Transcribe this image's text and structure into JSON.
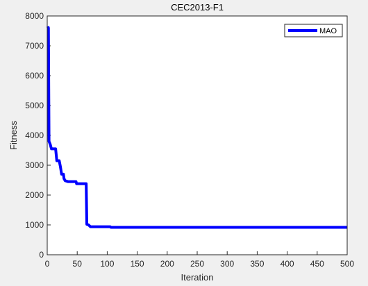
{
  "chart_data": {
    "type": "line",
    "title": "CEC2013-F1",
    "x_label": "Iteration",
    "y_label": "Fitness",
    "series": [
      {
        "name": "MAO",
        "color": "#0000ff",
        "x": [
          1,
          2,
          3,
          5,
          7,
          14,
          16,
          20,
          22,
          24,
          27,
          28,
          30,
          35,
          48,
          49,
          65,
          66,
          69,
          72,
          105,
          106,
          500
        ],
        "values": [
          7650,
          7600,
          3800,
          3700,
          3550,
          3550,
          3150,
          3150,
          2950,
          2700,
          2700,
          2550,
          2480,
          2450,
          2450,
          2380,
          2380,
          1020,
          1000,
          940,
          940,
          920,
          920
        ]
      }
    ],
    "xlim": [
      0,
      500
    ],
    "xticks": [
      0,
      50,
      100,
      150,
      200,
      250,
      300,
      350,
      400,
      450,
      500
    ],
    "ylim": [
      0,
      8000
    ],
    "yticks": [
      0,
      1000,
      2000,
      3000,
      4000,
      5000,
      6000,
      7000,
      8000
    ],
    "grid": false,
    "legend_position": "upper-right"
  }
}
